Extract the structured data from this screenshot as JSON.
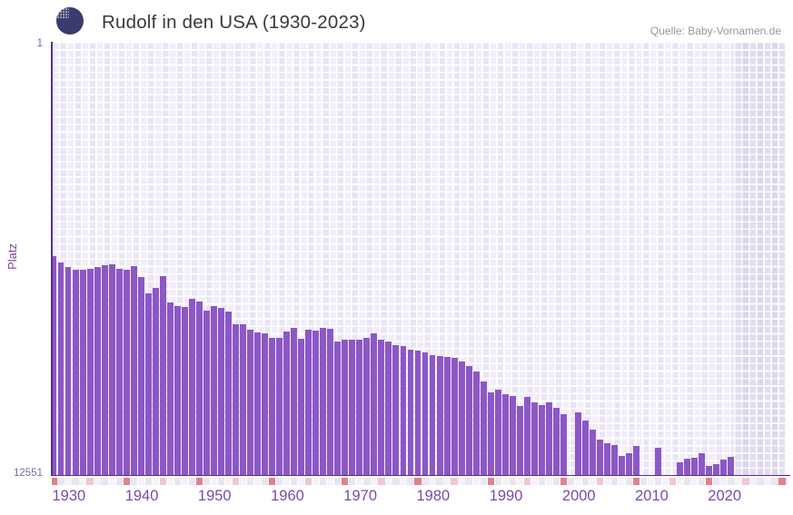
{
  "header": {
    "title": "Rudolf in den USA (1930-2023)",
    "source": "Quelle: Baby-Vornamen.de"
  },
  "y_axis": {
    "label": "Platz",
    "top_tick": "1",
    "bottom_tick": "12551"
  },
  "x_axis": {
    "decade_labels": [
      "1930",
      "1940",
      "1950",
      "1960",
      "1970",
      "1980",
      "1990",
      "2000",
      "2010",
      "2020"
    ],
    "axis_year_start": 1930,
    "axis_year_end": 2031
  },
  "colors": {
    "bar": "#8c57c6",
    "axis_line": "#563089",
    "decade_tick": "#e2808d",
    "five_year_tick": "#f0c7d2",
    "tick_cell_even": "#f5f2fb",
    "tick_cell_odd": "#eae5f3",
    "x_label": "#7b4aa8",
    "title_text": "#3a383e",
    "source_text": "#9a949e"
  },
  "chart_data": {
    "type": "bar",
    "title": "Rudolf in den USA (1930-2023)",
    "xlabel": "",
    "ylabel": "Platz",
    "y_scale": "log",
    "y_inverted": true,
    "ylim": [
      1,
      12551
    ],
    "x_years_shown": [
      1930,
      2023
    ],
    "no_data_years": [
      2001,
      2011,
      2012,
      2014,
      2015
    ],
    "note": "Rank (Platz) of the name Rudolf in the USA per year; rank 1 at top, bars grow downward-anchored on a log scale; shaded band right of 2023 is future/no-data region",
    "series": [
      {
        "name": "Platz",
        "points": [
          {
            "year": 1930,
            "rank": 107
          },
          {
            "year": 1931,
            "rank": 122
          },
          {
            "year": 1932,
            "rank": 135
          },
          {
            "year": 1933,
            "rank": 144
          },
          {
            "year": 1934,
            "rank": 144
          },
          {
            "year": 1935,
            "rank": 141
          },
          {
            "year": 1936,
            "rank": 135
          },
          {
            "year": 1937,
            "rank": 130
          },
          {
            "year": 1938,
            "rank": 127
          },
          {
            "year": 1939,
            "rank": 141
          },
          {
            "year": 1940,
            "rank": 144
          },
          {
            "year": 1941,
            "rank": 133
          },
          {
            "year": 1942,
            "rank": 168
          },
          {
            "year": 1943,
            "rank": 240
          },
          {
            "year": 1944,
            "rank": 213
          },
          {
            "year": 1945,
            "rank": 165
          },
          {
            "year": 1946,
            "rank": 293
          },
          {
            "year": 1947,
            "rank": 317
          },
          {
            "year": 1948,
            "rank": 323
          },
          {
            "year": 1949,
            "rank": 270
          },
          {
            "year": 1950,
            "rank": 287
          },
          {
            "year": 1951,
            "rank": 350
          },
          {
            "year": 1952,
            "rank": 317
          },
          {
            "year": 1953,
            "rank": 329
          },
          {
            "year": 1954,
            "rank": 357
          },
          {
            "year": 1955,
            "rank": 470
          },
          {
            "year": 1956,
            "rank": 470
          },
          {
            "year": 1957,
            "rank": 530
          },
          {
            "year": 1958,
            "rank": 562
          },
          {
            "year": 1959,
            "rank": 573
          },
          {
            "year": 1960,
            "rank": 633
          },
          {
            "year": 1961,
            "rank": 633
          },
          {
            "year": 1962,
            "rank": 551
          },
          {
            "year": 1963,
            "rank": 509
          },
          {
            "year": 1964,
            "rank": 646
          },
          {
            "year": 1965,
            "rank": 530
          },
          {
            "year": 1966,
            "rank": 540
          },
          {
            "year": 1967,
            "rank": 509
          },
          {
            "year": 1968,
            "rank": 519
          },
          {
            "year": 1969,
            "rank": 685
          },
          {
            "year": 1970,
            "rank": 658
          },
          {
            "year": 1971,
            "rank": 658
          },
          {
            "year": 1972,
            "rank": 658
          },
          {
            "year": 1973,
            "rank": 633
          },
          {
            "year": 1974,
            "rank": 573
          },
          {
            "year": 1975,
            "rank": 658
          },
          {
            "year": 1976,
            "rank": 685
          },
          {
            "year": 1977,
            "rank": 741
          },
          {
            "year": 1978,
            "rank": 756
          },
          {
            "year": 1979,
            "rank": 818
          },
          {
            "year": 1980,
            "rank": 835
          },
          {
            "year": 1981,
            "rank": 869
          },
          {
            "year": 1982,
            "rank": 922
          },
          {
            "year": 1983,
            "rank": 940
          },
          {
            "year": 1984,
            "rank": 959
          },
          {
            "year": 1985,
            "rank": 978
          },
          {
            "year": 1986,
            "rank": 1058
          },
          {
            "year": 1987,
            "rank": 1169
          },
          {
            "year": 1988,
            "rank": 1316
          },
          {
            "year": 1989,
            "rank": 1636
          },
          {
            "year": 1990,
            "rank": 2074
          },
          {
            "year": 1991,
            "rank": 1955
          },
          {
            "year": 1992,
            "rank": 2157
          },
          {
            "year": 1993,
            "rank": 2245
          },
          {
            "year": 1994,
            "rank": 2791
          },
          {
            "year": 1995,
            "rank": 2290
          },
          {
            "year": 1996,
            "rank": 2578
          },
          {
            "year": 1997,
            "rank": 2736
          },
          {
            "year": 1998,
            "rank": 2578
          },
          {
            "year": 1999,
            "rank": 2903
          },
          {
            "year": 2000,
            "rank": 3334
          },
          {
            "year": 2001,
            "rank": null
          },
          {
            "year": 2002,
            "rank": 3206
          },
          {
            "year": 2003,
            "rank": 3830
          },
          {
            "year": 2004,
            "rank": 4668
          },
          {
            "year": 2005,
            "rank": 5803
          },
          {
            "year": 2006,
            "rank": 6281
          },
          {
            "year": 2007,
            "rank": 6534
          },
          {
            "year": 2008,
            "rank": 8285
          },
          {
            "year": 2009,
            "rank": 7808
          },
          {
            "year": 2010,
            "rank": 6664
          },
          {
            "year": 2011,
            "rank": null
          },
          {
            "year": 2012,
            "rank": null
          },
          {
            "year": 2013,
            "rank": 6934
          },
          {
            "year": 2014,
            "rank": null
          },
          {
            "year": 2015,
            "rank": null
          },
          {
            "year": 2016,
            "rank": 9515
          },
          {
            "year": 2017,
            "rank": 8790
          },
          {
            "year": 2018,
            "rank": 8617
          },
          {
            "year": 2019,
            "rank": 7808
          },
          {
            "year": 2020,
            "rank": 10298
          },
          {
            "year": 2021,
            "rank": 9900
          },
          {
            "year": 2022,
            "rank": 8965
          },
          {
            "year": 2023,
            "rank": 8448
          }
        ]
      }
    ]
  }
}
